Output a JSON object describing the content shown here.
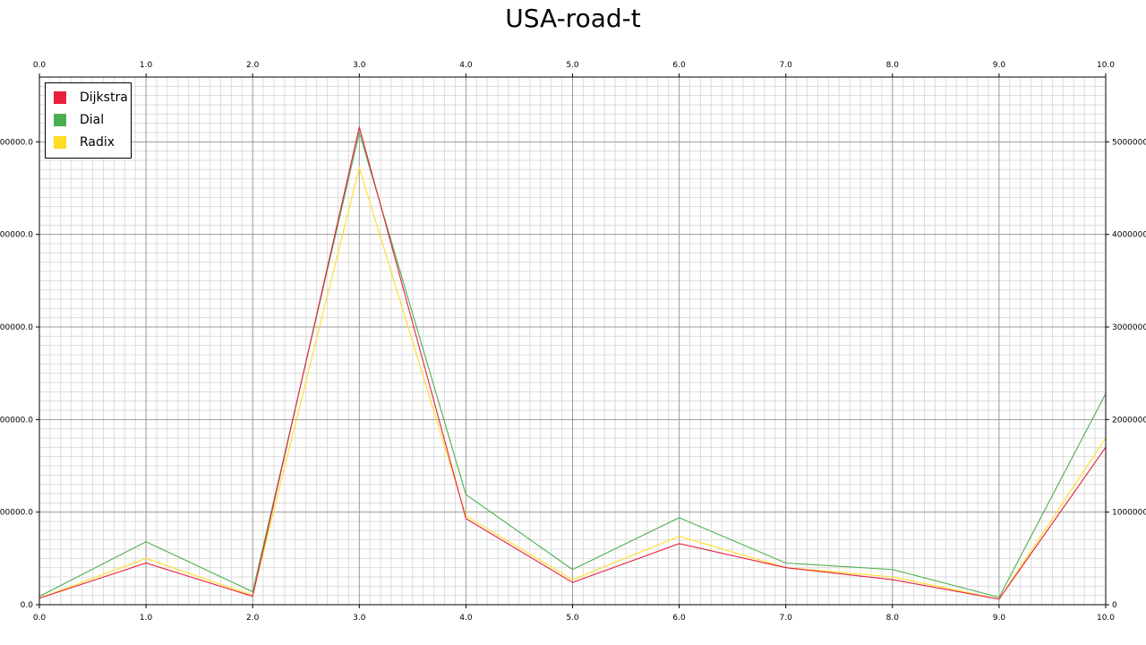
{
  "chart_data": {
    "type": "line",
    "title": "USA-road-t",
    "xlabel": "",
    "ylabel": "",
    "x": [
      0,
      1,
      2,
      3,
      4,
      5,
      6,
      7,
      8,
      9,
      10
    ],
    "x_tick_labels": [
      "0.0",
      "1.0",
      "2.0",
      "3.0",
      "4.0",
      "5.0",
      "6.0",
      "7.0",
      "8.0",
      "9.0",
      "10.0"
    ],
    "y_tick_labels_left": [
      "0.0",
      "000000.0",
      "000000.0",
      "000000.0",
      "000000.0",
      "000000.0"
    ],
    "y_tick_labels_right": [
      "0",
      "1000000",
      "2000000",
      "3000000",
      "4000000",
      "5000000"
    ],
    "y_ticks": [
      0,
      1000000,
      2000000,
      3000000,
      4000000,
      5000000
    ],
    "xlim": [
      0,
      10
    ],
    "ylim": [
      0,
      5700000
    ],
    "grid": true,
    "legend_position": "top-left",
    "series": [
      {
        "name": "Dijkstra",
        "color": "#e8203c",
        "values": [
          70000,
          450000,
          90000,
          5160000,
          930000,
          240000,
          660000,
          400000,
          270000,
          60000,
          1700000
        ]
      },
      {
        "name": "Dial",
        "color": "#4caf50",
        "values": [
          90000,
          680000,
          140000,
          5100000,
          1190000,
          380000,
          940000,
          450000,
          380000,
          80000,
          2280000
        ]
      },
      {
        "name": "Radix",
        "color": "#ffdd22",
        "values": [
          70000,
          500000,
          100000,
          4720000,
          960000,
          270000,
          740000,
          400000,
          300000,
          60000,
          1800000
        ]
      }
    ]
  }
}
